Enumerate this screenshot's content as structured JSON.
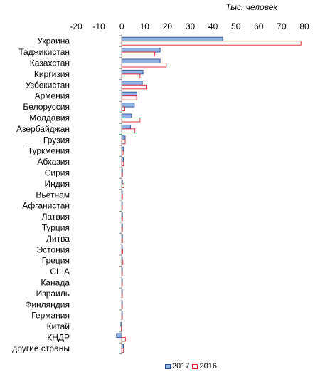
{
  "chart_data": {
    "type": "bar",
    "orientation": "horizontal",
    "unit_label": "Тыс. человек",
    "xlim": [
      -20,
      80
    ],
    "x_ticks": [
      -20,
      -10,
      0,
      10,
      20,
      30,
      40,
      50,
      60,
      70,
      80
    ],
    "categories": [
      "Украина",
      "Таджикистан",
      "Казахстан",
      "Киргизия",
      "Узбекистан",
      "Армения",
      "Белоруссия",
      "Молдавия",
      "Азербайджан",
      "Грузия",
      "Туркмения",
      "Абхазия",
      "Сирия",
      "Индия",
      "Вьетнам",
      "Афганистан",
      "Латвия",
      "Турция",
      "Литва",
      "Эстония",
      "Греция",
      "США",
      "Канада",
      "Израиль",
      "Финляндия",
      "Германия",
      "Китай",
      "КНДР",
      "другие страны"
    ],
    "series": [
      {
        "name": "2017",
        "style": "filled",
        "fill": "#8fb4e3",
        "stroke": "#2a4d8f",
        "values": [
          44.2,
          16.8,
          16.8,
          9.3,
          9.0,
          6.6,
          5.5,
          4.3,
          3.8,
          1.5,
          0.8,
          0.7,
          0.3,
          0.3,
          0.2,
          0.2,
          0.3,
          0.3,
          0.3,
          0.2,
          0.2,
          0.1,
          0.1,
          0.1,
          0.1,
          0.1,
          -0.4,
          -2.3,
          0.7
        ]
      },
      {
        "name": "2016",
        "style": "outline",
        "fill": "#ffffff",
        "stroke": "#e0212b",
        "values": [
          78.5,
          14.5,
          19.5,
          8.0,
          11.0,
          6.5,
          1.3,
          8.0,
          5.8,
          1.5,
          0.6,
          0.8,
          0.3,
          1.0,
          0.3,
          0.2,
          0.3,
          0.3,
          0.3,
          0.4,
          0.5,
          0.2,
          0.1,
          0.1,
          0.1,
          0.1,
          -0.2,
          1.6,
          0.8
        ]
      }
    ],
    "legend": "bottom",
    "grid": false
  },
  "legend": {
    "items": [
      "2017",
      "2016"
    ]
  }
}
